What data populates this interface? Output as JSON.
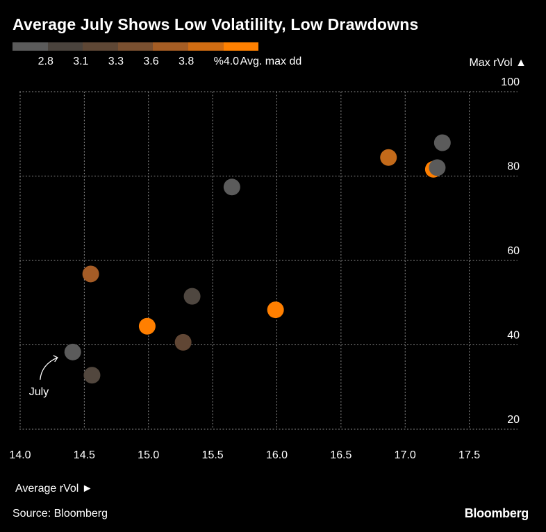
{
  "chart_data": {
    "type": "scatter",
    "title": "Average July Shows Low Volatililty, Low Drawdowns",
    "xlabel": "Average rVol ►",
    "ylabel": "Max rVol ▲",
    "xlim": [
      14.0,
      17.8
    ],
    "ylim": [
      20,
      100
    ],
    "x_ticks": [
      "14.0",
      "14.5",
      "15.0",
      "15.5",
      "16.0",
      "16.5",
      "17.0",
      "17.5"
    ],
    "y_ticks": [
      "20",
      "40",
      "60",
      "80",
      "100"
    ],
    "grid": true,
    "color_legend": {
      "label": "Avg. max dd",
      "tick_labels": [
        "2.8",
        "3.1",
        "3.3",
        "3.6",
        "3.8",
        "%4.0"
      ],
      "colors": [
        "#5b5b5b",
        "#4a433d",
        "#5e4735",
        "#7a5030",
        "#a55d24",
        "#d06c12",
        "#ff8000"
      ]
    },
    "points": [
      {
        "x": 14.41,
        "y": 38.3,
        "dd": 2.8,
        "color": "#5b5b5b",
        "label": "July"
      },
      {
        "x": 14.56,
        "y": 32.8,
        "dd": 3.2,
        "color": "#52473e"
      },
      {
        "x": 14.55,
        "y": 56.8,
        "dd": 3.7,
        "color": "#a55c26"
      },
      {
        "x": 14.99,
        "y": 44.4,
        "dd": 4.1,
        "color": "#ff7f00"
      },
      {
        "x": 15.27,
        "y": 40.6,
        "dd": 3.3,
        "color": "#604634"
      },
      {
        "x": 15.34,
        "y": 51.5,
        "dd": 3.1,
        "color": "#4f4740"
      },
      {
        "x": 15.65,
        "y": 77.4,
        "dd": 2.8,
        "color": "#5b5b5b"
      },
      {
        "x": 15.99,
        "y": 48.3,
        "dd": 4.1,
        "color": "#ff7f00"
      },
      {
        "x": 16.87,
        "y": 84.4,
        "dd": 3.8,
        "color": "#c36a1a"
      },
      {
        "x": 17.22,
        "y": 81.6,
        "dd": 4.1,
        "color": "#ff7f00"
      },
      {
        "x": 17.25,
        "y": 82.0,
        "dd": 2.8,
        "color": "#5b5b5b"
      },
      {
        "x": 17.29,
        "y": 87.9,
        "dd": 2.8,
        "color": "#5b5b5b"
      }
    ]
  },
  "footer": {
    "source": "Source: Bloomberg",
    "logo": "Bloomberg"
  }
}
